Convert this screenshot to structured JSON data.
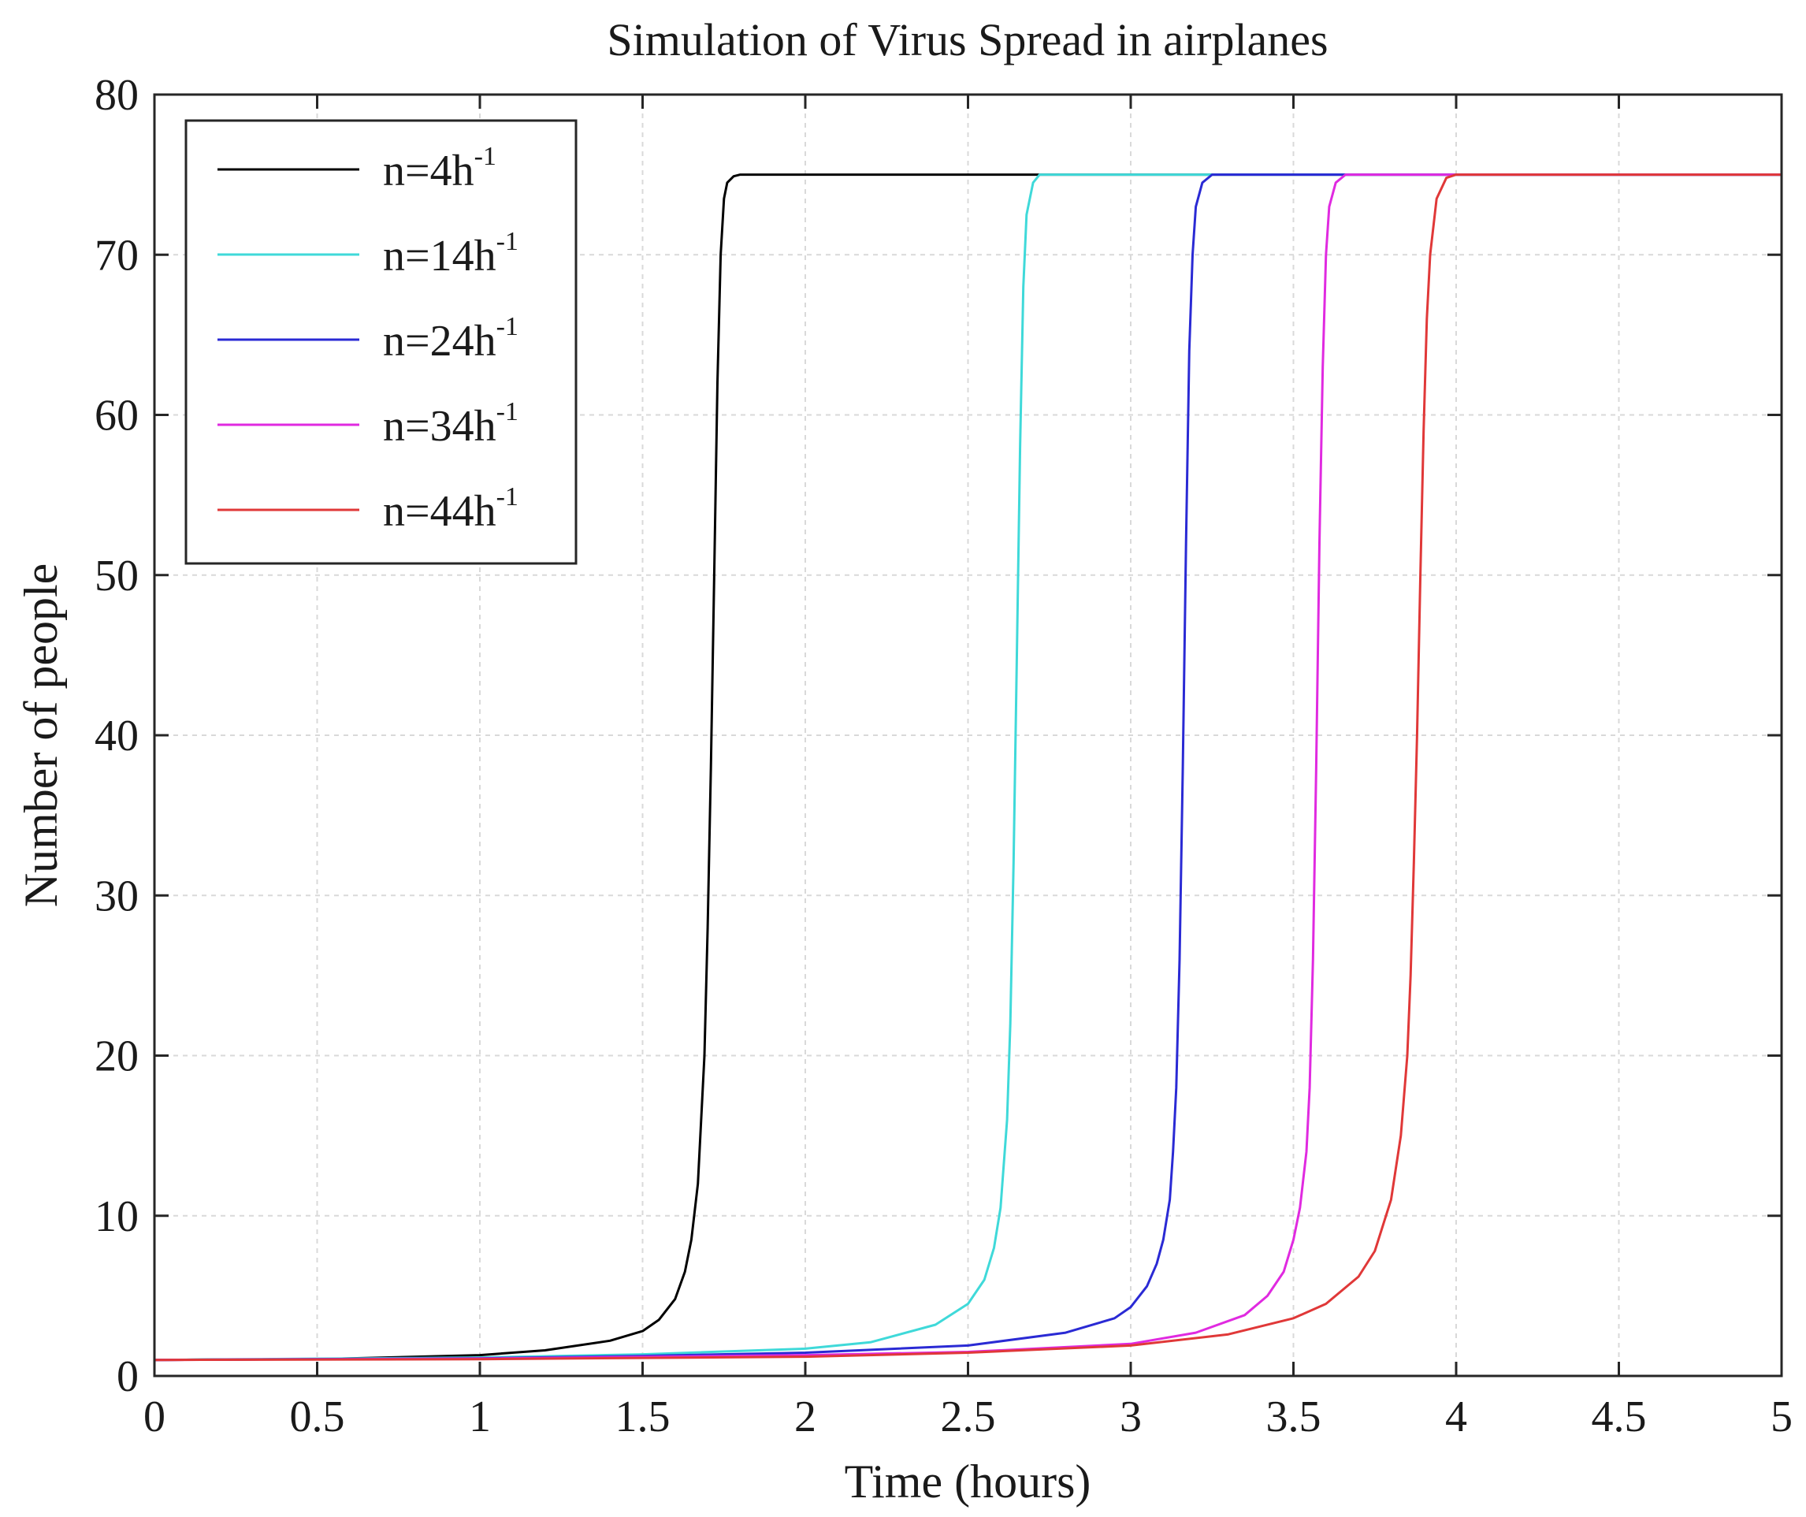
{
  "chart_data": {
    "type": "line",
    "title": "Simulation of Virus Spread in airplanes",
    "xlabel": "Time (hours)",
    "ylabel": "Number of people",
    "xlim": [
      0,
      5
    ],
    "ylim": [
      0,
      80
    ],
    "xticks": [
      0,
      0.5,
      1,
      1.5,
      2,
      2.5,
      3,
      3.5,
      4,
      4.5,
      5
    ],
    "yticks": [
      0,
      10,
      20,
      30,
      40,
      50,
      60,
      70,
      80
    ],
    "xtick_labels": [
      "0",
      "0.5",
      "1",
      "1.5",
      "2",
      "2.5",
      "3",
      "3.5",
      "4",
      "4.5",
      "5"
    ],
    "ytick_labels": [
      "0",
      "10",
      "20",
      "30",
      "40",
      "50",
      "60",
      "70",
      "80"
    ],
    "grid": true,
    "legend_position": "top-left",
    "series": [
      {
        "name": "n=4h-1",
        "label_base": "n=4h",
        "label_sup": "-1",
        "color": "#000000",
        "x": [
          0,
          0.5,
          1.0,
          1.2,
          1.4,
          1.5,
          1.55,
          1.6,
          1.63,
          1.65,
          1.67,
          1.69,
          1.7,
          1.71,
          1.72,
          1.73,
          1.74,
          1.75,
          1.76,
          1.78,
          1.8,
          5
        ],
        "y": [
          1,
          1.05,
          1.3,
          1.6,
          2.2,
          2.8,
          3.5,
          4.8,
          6.5,
          8.5,
          12,
          20,
          28,
          38,
          50,
          62,
          70,
          73.5,
          74.5,
          74.9,
          75,
          75
        ]
      },
      {
        "name": "n=14h-1",
        "label_base": "n=14h",
        "label_sup": "-1",
        "color": "#3fd9d9",
        "x": [
          0,
          1.0,
          1.5,
          2.0,
          2.2,
          2.4,
          2.5,
          2.55,
          2.58,
          2.6,
          2.62,
          2.63,
          2.64,
          2.65,
          2.66,
          2.67,
          2.68,
          2.7,
          2.72,
          5
        ],
        "y": [
          1,
          1.15,
          1.35,
          1.7,
          2.1,
          3.2,
          4.5,
          6,
          8,
          10.5,
          16,
          22,
          32,
          45,
          58,
          68,
          72.5,
          74.5,
          75,
          75
        ]
      },
      {
        "name": "n=24h-1",
        "label_base": "n=24h",
        "label_sup": "-1",
        "color": "#2a2ad4",
        "x": [
          0,
          1.0,
          1.5,
          2.0,
          2.5,
          2.8,
          2.95,
          3.0,
          3.05,
          3.08,
          3.1,
          3.12,
          3.13,
          3.14,
          3.15,
          3.16,
          3.17,
          3.18,
          3.19,
          3.2,
          3.22,
          3.25,
          5
        ],
        "y": [
          1,
          1.1,
          1.25,
          1.45,
          1.9,
          2.7,
          3.6,
          4.3,
          5.6,
          7,
          8.5,
          11,
          14,
          18,
          26,
          38,
          52,
          64,
          70,
          73,
          74.5,
          75,
          75
        ]
      },
      {
        "name": "n=34h-1",
        "label_base": "n=34h",
        "label_sup": "-1",
        "color": "#e02ae0",
        "x": [
          0,
          1.0,
          2.0,
          2.5,
          3.0,
          3.2,
          3.35,
          3.42,
          3.47,
          3.5,
          3.52,
          3.54,
          3.55,
          3.56,
          3.57,
          3.58,
          3.59,
          3.6,
          3.61,
          3.63,
          3.66,
          5
        ],
        "y": [
          1,
          1.08,
          1.3,
          1.5,
          2.0,
          2.7,
          3.8,
          5,
          6.5,
          8.5,
          10.5,
          14,
          18,
          26,
          38,
          52,
          63,
          70,
          73,
          74.5,
          75,
          75
        ]
      },
      {
        "name": "n=44h-1",
        "label_base": "n=44h",
        "label_sup": "-1",
        "color": "#e03838",
        "x": [
          0,
          1.0,
          2.0,
          2.5,
          3.0,
          3.3,
          3.5,
          3.6,
          3.7,
          3.75,
          3.8,
          3.83,
          3.85,
          3.86,
          3.87,
          3.88,
          3.89,
          3.9,
          3.91,
          3.92,
          3.94,
          3.97,
          4.0,
          5
        ],
        "y": [
          1,
          1.05,
          1.2,
          1.45,
          1.9,
          2.6,
          3.6,
          4.5,
          6.2,
          7.8,
          11,
          15,
          20,
          25,
          32,
          40,
          50,
          59,
          66,
          70,
          73.5,
          74.8,
          75,
          75
        ]
      }
    ]
  }
}
